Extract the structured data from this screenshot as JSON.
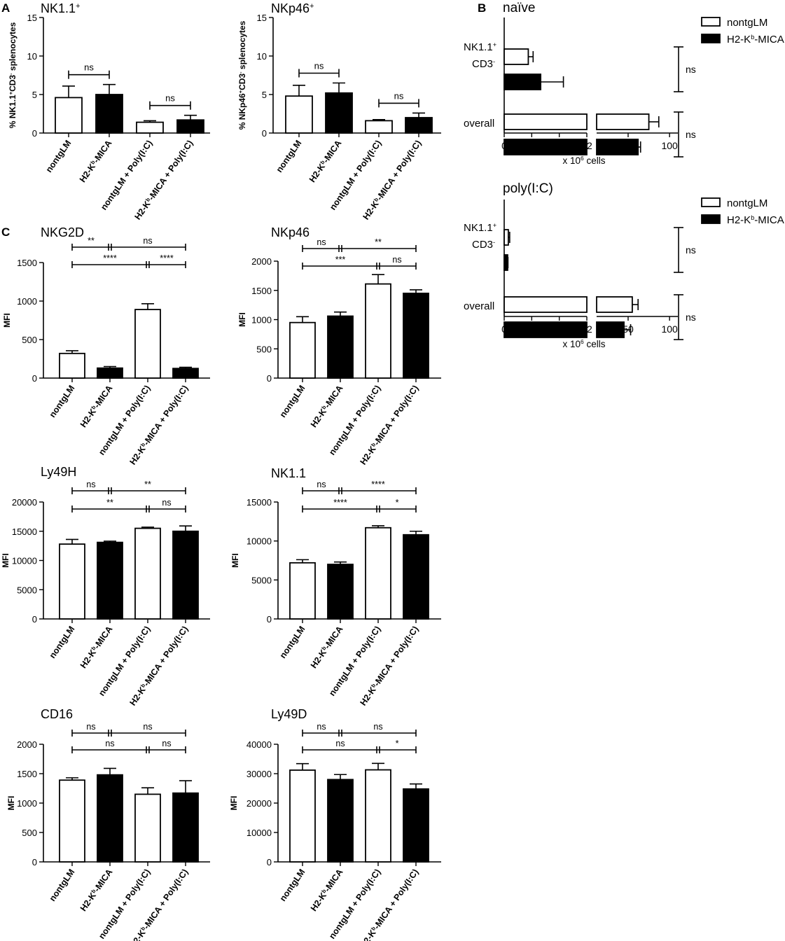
{
  "figure": {
    "panel_labels": [
      "A",
      "B",
      "C"
    ],
    "common": {
      "x_categories": [
        "nontgLM",
        "H2-Kb-MICA",
        "nontgLM + Poly(I:C)",
        "H2-Kb-MICA + Poly(I:C)"
      ],
      "bar_colors": [
        "#ffffff",
        "#000000",
        "#ffffff",
        "#000000"
      ]
    }
  },
  "chart_data": [
    {
      "id": "A1",
      "type": "bar",
      "title": "NK1.1⁺",
      "ylabel": "% NK1.1⁺CD3⁻ splenocytes",
      "ylim": [
        0,
        15
      ],
      "yticks": [
        0,
        5,
        10,
        15
      ],
      "categories": [
        "nontgLM",
        "H2-Kb-MICA",
        "nontgLM + Poly(I:C)",
        "H2-Kb-MICA + Poly(I:C)"
      ],
      "values": [
        4.6,
        5.0,
        1.4,
        1.7
      ],
      "errors": [
        1.5,
        1.3,
        0.2,
        0.6
      ],
      "significance": [
        {
          "from": 0,
          "to": 1,
          "label": "ns"
        },
        {
          "from": 2,
          "to": 3,
          "label": "ns"
        }
      ]
    },
    {
      "id": "A2",
      "type": "bar",
      "title": "NKp46⁺",
      "ylabel": "% NKp46⁺CD3⁻ splenocytes",
      "ylim": [
        0,
        15
      ],
      "yticks": [
        0,
        5,
        10,
        15
      ],
      "categories": [
        "nontgLM",
        "H2-Kb-MICA",
        "nontgLM + Poly(I:C)",
        "H2-Kb-MICA + Poly(I:C)"
      ],
      "values": [
        4.8,
        5.2,
        1.6,
        2.0
      ],
      "errors": [
        1.4,
        1.3,
        0.15,
        0.6
      ],
      "significance": [
        {
          "from": 0,
          "to": 1,
          "label": "ns"
        },
        {
          "from": 2,
          "to": 3,
          "label": "ns"
        }
      ]
    },
    {
      "id": "B1",
      "type": "horizontal-bar",
      "title": "naïve",
      "xlabel": "x 10⁶ cells",
      "break_axis": true,
      "xticks_left": [
        0,
        4,
        8,
        12
      ],
      "xticks_right": [
        50,
        100
      ],
      "legend": [
        "nontgLM",
        "H2-Kb-MICA"
      ],
      "legend_position": "top-right",
      "groups": [
        "NK1.1⁺ CD3⁻",
        "overall"
      ],
      "series": [
        {
          "name": "nontgLM",
          "values": [
            3.5,
            75
          ],
          "errors": [
            0.7,
            12
          ]
        },
        {
          "name": "H2-Kb-MICA",
          "values": [
            5.3,
            62
          ],
          "errors": [
            3.3,
            3
          ]
        }
      ],
      "significance": [
        "ns",
        "ns"
      ]
    },
    {
      "id": "B2",
      "type": "horizontal-bar",
      "title": "poly(I:C)",
      "xlabel": "x 10⁶ cells",
      "break_axis": true,
      "xticks_left": [
        0,
        4,
        8,
        12
      ],
      "xticks_right": [
        50,
        100
      ],
      "legend": [
        "nontgLM",
        "H2-Kb-MICA"
      ],
      "legend_position": "top-right",
      "groups": [
        "NK1.1⁺ CD3⁻",
        "overall"
      ],
      "series": [
        {
          "name": "nontgLM",
          "values": [
            0.6,
            55
          ],
          "errors": [
            0.2,
            7
          ]
        },
        {
          "name": "H2-Kb-MICA",
          "values": [
            0.5,
            45
          ],
          "errors": [
            0.05,
            8
          ]
        }
      ],
      "significance": [
        "ns",
        "ns"
      ]
    },
    {
      "id": "C1",
      "type": "bar",
      "title": "NKG2D",
      "ylabel": "MFI",
      "ylim": [
        0,
        1500
      ],
      "yticks": [
        0,
        500,
        1000,
        1500
      ],
      "categories": [
        "nontgLM",
        "H2-Kb-MICA",
        "nontgLM + Poly(I:C)",
        "H2-Kb-MICA + Poly(I:C)"
      ],
      "values": [
        320,
        130,
        890,
        125
      ],
      "errors": [
        35,
        20,
        75,
        15
      ],
      "brackets": [
        [
          "**",
          "ns"
        ],
        [
          "****",
          "****"
        ]
      ]
    },
    {
      "id": "C2",
      "type": "bar",
      "title": "NKp46",
      "ylabel": "MFI",
      "ylim": [
        0,
        2000
      ],
      "yticks": [
        0,
        500,
        1000,
        1500,
        2000
      ],
      "categories": [
        "nontgLM",
        "H2-Kb-MICA",
        "nontgLM + Poly(I:C)",
        "H2-Kb-MICA + Poly(I:C)"
      ],
      "values": [
        950,
        1060,
        1610,
        1450
      ],
      "errors": [
        100,
        70,
        160,
        60
      ],
      "brackets": [
        [
          "ns",
          "**"
        ],
        [
          "***",
          "ns"
        ]
      ]
    },
    {
      "id": "C3",
      "type": "bar",
      "title": "Ly49H",
      "ylabel": "MFI",
      "ylim": [
        0,
        20000
      ],
      "yticks": [
        0,
        5000,
        10000,
        15000,
        20000
      ],
      "categories": [
        "nontgLM",
        "H2-Kb-MICA",
        "nontgLM + Poly(I:C)",
        "H2-Kb-MICA + Poly(I:C)"
      ],
      "values": [
        12800,
        13100,
        15500,
        15000
      ],
      "errors": [
        800,
        200,
        200,
        900
      ],
      "brackets": [
        [
          "ns",
          "**"
        ],
        [
          "**",
          "ns"
        ]
      ]
    },
    {
      "id": "C4",
      "type": "bar",
      "title": "NK1.1",
      "ylabel": "MFI",
      "ylim": [
        0,
        15000
      ],
      "yticks": [
        0,
        5000,
        10000,
        15000
      ],
      "categories": [
        "nontgLM",
        "H2-Kb-MICA",
        "nontgLM + Poly(I:C)",
        "H2-Kb-MICA + Poly(I:C)"
      ],
      "values": [
        7200,
        7000,
        11700,
        10800
      ],
      "errors": [
        400,
        300,
        250,
        450
      ],
      "brackets": [
        [
          "ns",
          "****"
        ],
        [
          "****",
          "*"
        ]
      ]
    },
    {
      "id": "C5",
      "type": "bar",
      "title": "CD16",
      "ylabel": "MFI",
      "ylim": [
        0,
        2000
      ],
      "yticks": [
        0,
        500,
        1000,
        1500,
        2000
      ],
      "categories": [
        "nontgLM",
        "H2-Kb-MICA",
        "nontgLM + Poly(I:C)",
        "H2-Kb-MICA + Poly(I:C)"
      ],
      "values": [
        1390,
        1480,
        1150,
        1170
      ],
      "errors": [
        40,
        110,
        110,
        210
      ],
      "brackets": [
        [
          "ns",
          "ns"
        ],
        [
          "ns",
          "ns"
        ]
      ]
    },
    {
      "id": "C6",
      "type": "bar",
      "title": "Ly49D",
      "ylabel": "MFI",
      "ylim": [
        0,
        40000
      ],
      "yticks": [
        0,
        10000,
        20000,
        30000,
        40000
      ],
      "categories": [
        "nontgLM",
        "H2-Kb-MICA",
        "nontgLM + Poly(I:C)",
        "H2-Kb-MICA + Poly(I:C)"
      ],
      "values": [
        31200,
        28000,
        31300,
        24800
      ],
      "errors": [
        2200,
        1700,
        2200,
        1700
      ],
      "brackets": [
        [
          "ns",
          "ns"
        ],
        [
          "ns",
          "*"
        ]
      ]
    }
  ]
}
